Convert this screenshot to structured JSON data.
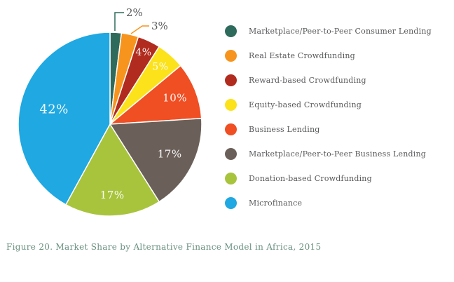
{
  "figure": {
    "caption": "Figure 20. Market Share by Alternative Finance Model in Africa, 2015"
  },
  "colors": {
    "callout_text": "#58595B",
    "legend_text": "#58595B",
    "caption_text": "#69907F",
    "slice_label_text": "#FFFFFF",
    "background": "#FFFFFF"
  },
  "chart_data": {
    "type": "pie",
    "title": "",
    "legend_position": "right",
    "start_angle_deg": 0,
    "direction": "clockwise",
    "slices": [
      {
        "label": "Marketplace/Peer-to-Peer Consumer Lending",
        "value": 2,
        "pct_label": "2%",
        "color": "#2E6B5C",
        "label_placement": "callout"
      },
      {
        "label": "Real Estate Crowdfunding",
        "value": 3,
        "pct_label": "3%",
        "color": "#F7941E",
        "label_placement": "callout"
      },
      {
        "label": "Reward-based Crowdfunding",
        "value": 4,
        "pct_label": "4%",
        "color": "#B12B1E",
        "label_placement": "inside",
        "label_r": 0.86
      },
      {
        "label": "Equity-based Crowdfunding",
        "value": 5,
        "pct_label": "5%",
        "color": "#FBE21B",
        "label_placement": "inside",
        "label_r": 0.83
      },
      {
        "label": "Business Lending",
        "value": 10,
        "pct_label": "10%",
        "color": "#F04E23",
        "label_placement": "inside",
        "label_r": 0.76
      },
      {
        "label": "Marketplace/Peer-to-Peer Business Lending",
        "value": 17,
        "pct_label": "17%",
        "color": "#6B6059",
        "label_placement": "inside",
        "label_r": 0.73
      },
      {
        "label": "Donation-based Crowdfunding",
        "value": 17,
        "pct_label": "17%",
        "color": "#A8C43D",
        "label_placement": "inside",
        "label_r": 0.78
      },
      {
        "label": "Microfinance",
        "value": 42,
        "pct_label": "42%",
        "color": "#1FA8E1",
        "label_placement": "inside",
        "label_r": 0.63
      }
    ]
  }
}
